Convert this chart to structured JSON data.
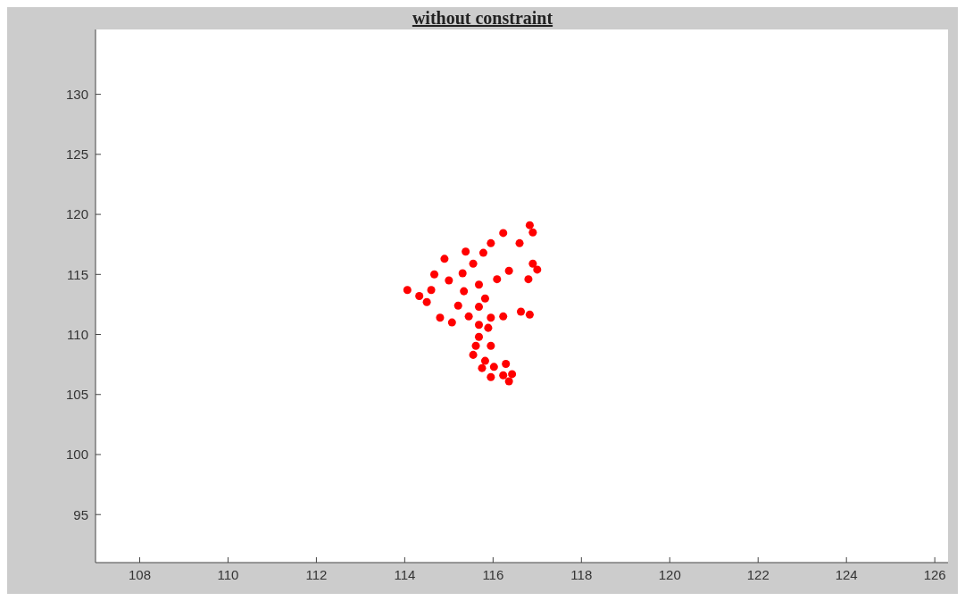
{
  "chart_data": {
    "type": "scatter",
    "title": "without constraint",
    "xlim": [
      107,
      126.3
    ],
    "ylim": [
      91,
      135.4
    ],
    "xticks": [
      108,
      110,
      112,
      114,
      116,
      118,
      120,
      122,
      124,
      126
    ],
    "yticks": [
      95,
      100,
      105,
      110,
      115,
      120,
      125,
      130
    ],
    "grid": false,
    "legend": false,
    "marker": "circle",
    "series": [
      {
        "color": "#ff0000",
        "x": [
          116.83,
          116.9,
          116.23,
          115.95,
          116.6,
          115.38,
          115.78,
          114.9,
          115.55,
          116.9,
          117.0,
          116.36,
          114.67,
          115.31,
          115.0,
          116.09,
          116.8,
          115.68,
          114.06,
          114.6,
          114.33,
          114.5,
          115.34,
          115.82,
          115.21,
          115.68,
          114.8,
          115.07,
          115.45,
          115.95,
          116.23,
          116.63,
          116.83,
          115.68,
          115.89,
          115.68,
          115.61,
          115.95,
          115.55,
          115.82,
          115.75,
          116.02,
          116.29,
          115.95,
          116.23,
          116.43,
          116.36
        ],
        "values": [
          119.1,
          118.5,
          118.45,
          117.6,
          117.6,
          116.9,
          116.8,
          116.3,
          115.9,
          115.9,
          115.4,
          115.3,
          115.0,
          115.1,
          114.5,
          114.6,
          114.6,
          114.15,
          113.7,
          113.7,
          113.2,
          112.7,
          113.6,
          113.0,
          112.4,
          112.3,
          111.4,
          111.0,
          111.5,
          111.4,
          111.5,
          111.9,
          111.65,
          110.8,
          110.55,
          109.8,
          109.05,
          109.05,
          108.3,
          107.8,
          107.2,
          107.3,
          107.55,
          106.45,
          106.6,
          106.7,
          106.1
        ]
      }
    ]
  }
}
